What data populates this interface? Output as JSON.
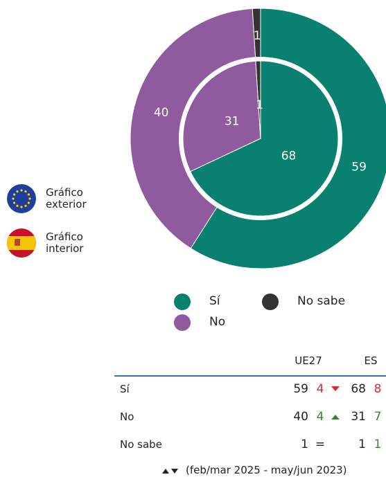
{
  "chart_data": {
    "type": "pie",
    "categories": [
      "Sí",
      "No",
      "No sabe"
    ],
    "colors": [
      "#0a8170",
      "#8f5b9e",
      "#333333"
    ],
    "series": [
      {
        "name": "Gráfico exterior",
        "values": [
          59,
          40,
          1
        ]
      },
      {
        "name": "Gráfico interior",
        "values": [
          68,
          31,
          1
        ]
      }
    ]
  },
  "table": {
    "columns": [
      "UE27",
      "ES"
    ],
    "rows": [
      {
        "label": "Sí",
        "ue27": 59,
        "ue27_change": 4,
        "ue27_trend": "down",
        "es": 68,
        "es_change": 8,
        "es_trend": "down"
      },
      {
        "label": "No",
        "ue27": 40,
        "ue27_change": 4,
        "ue27_trend": "up",
        "es": 31,
        "es_change": 7,
        "es_trend": "up"
      },
      {
        "label": "No sabe",
        "ue27": 1,
        "ue27_change": "=",
        "ue27_trend": "same",
        "es": 1,
        "es_change": 1,
        "es_trend": "up"
      }
    ],
    "footnote": "(feb/mar 2025 - may/jun 2023)"
  }
}
